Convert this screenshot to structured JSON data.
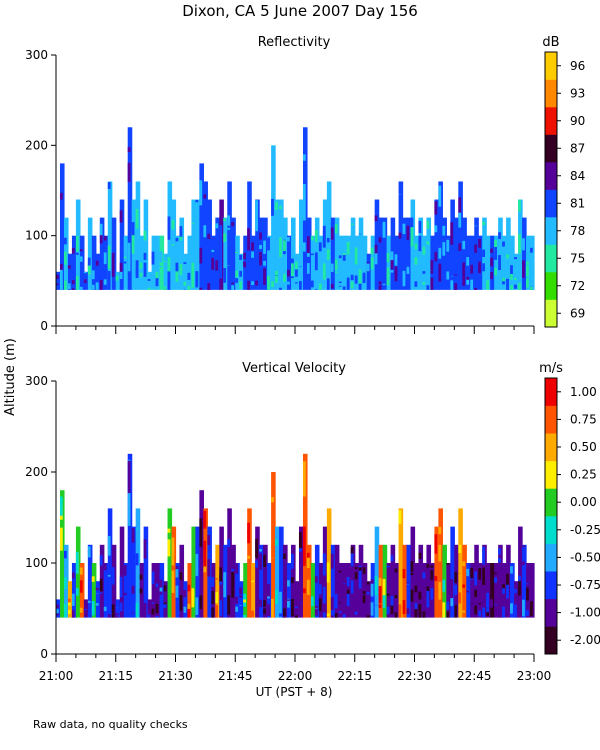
{
  "figure": {
    "title": "Dixon, CA  5 June 2007  Day 156",
    "shared_ylabel": "Altitude (m)",
    "xlabel": "UT  (PST + 8)",
    "footnote": "Raw data, no quality checks"
  },
  "chart_data": [
    {
      "type": "heatmap",
      "title": "Reflectivity",
      "x_range": [
        "21:00",
        "23:00"
      ],
      "x_ticks": [
        "21:00",
        "21:15",
        "21:30",
        "21:45",
        "22:00",
        "22:15",
        "22:30",
        "22:45",
        "23:00"
      ],
      "ylim": [
        0,
        300
      ],
      "y_ticks": [
        0,
        100,
        200,
        300
      ],
      "colorbar": {
        "unit": "dB",
        "tick_labels": [
          "69",
          "72",
          "75",
          "78",
          "81",
          "84",
          "87",
          "90",
          "93",
          "96"
        ],
        "colors": [
          "#ccff33",
          "#33dd00",
          "#22e8a0",
          "#22bbff",
          "#1144ff",
          "#550099",
          "#330022",
          "#ee1100",
          "#ff8800",
          "#ffcc00"
        ]
      },
      "data_floor_m": 40,
      "column_top_altitudes_m": [
        60,
        180,
        120,
        80,
        100,
        140,
        100,
        60,
        120,
        100,
        80,
        120,
        100,
        160,
        120,
        60,
        140,
        100,
        220,
        140,
        160,
        100,
        140,
        60,
        100,
        100,
        100,
        80,
        160,
        140,
        100,
        120,
        80,
        100,
        140,
        140,
        180,
        160,
        140,
        100,
        120,
        140,
        120,
        160,
        120,
        100,
        80,
        100,
        160,
        100,
        140,
        120,
        120,
        100,
        200,
        140,
        140,
        120,
        100,
        120,
        80,
        140,
        220,
        120,
        100,
        120,
        100,
        140,
        160,
        120,
        120,
        100,
        100,
        100,
        120,
        100,
        120,
        100,
        80,
        100,
        140,
        120,
        120,
        100,
        120,
        100,
        160,
        120,
        120,
        140,
        100,
        120,
        100,
        120,
        100,
        140,
        160,
        120,
        100,
        140,
        120,
        160,
        120,
        100,
        100,
        120,
        100,
        120,
        100,
        100,
        100,
        120,
        100,
        120,
        100,
        80,
        140,
        120,
        100,
        100
      ],
      "dominant_levels": [
        4,
        4,
        3,
        4,
        4,
        3,
        4,
        4,
        3,
        4,
        4,
        4,
        4,
        3,
        4,
        3,
        4,
        3,
        4,
        3,
        3,
        3,
        3,
        3,
        3,
        3,
        2,
        3,
        3,
        3,
        3,
        3,
        3,
        3,
        3,
        3,
        4,
        4,
        4,
        4,
        4,
        5,
        3,
        4,
        4,
        3,
        3,
        4,
        4,
        4,
        4,
        4,
        4,
        3,
        3,
        3,
        3,
        3,
        4,
        3,
        3,
        3,
        4,
        4,
        3,
        3,
        3,
        3,
        3,
        4,
        3,
        3,
        3,
        3,
        3,
        3,
        3,
        3,
        4,
        3,
        4,
        4,
        4,
        3,
        4,
        4,
        4,
        4,
        4,
        3,
        3,
        3,
        3,
        3,
        4,
        4,
        4,
        4,
        4,
        4,
        4,
        4,
        4,
        4,
        4,
        4,
        4,
        3,
        3,
        4,
        3,
        3,
        3,
        3,
        3,
        3,
        3,
        4,
        3,
        3
      ]
    },
    {
      "type": "heatmap",
      "title": "Vertical Velocity",
      "x_range": [
        "21:00",
        "23:00"
      ],
      "x_ticks": [
        "21:00",
        "21:15",
        "21:30",
        "21:45",
        "22:00",
        "22:15",
        "22:30",
        "22:45",
        "23:00"
      ],
      "ylim": [
        0,
        300
      ],
      "y_ticks": [
        0,
        100,
        200,
        300
      ],
      "colorbar": {
        "unit": "m/s",
        "tick_labels": [
          "-2.00",
          "-1.00",
          "-0.75",
          "-0.50",
          "-0.25",
          "0.00",
          "0.25",
          "0.50",
          "0.75",
          "1.00"
        ],
        "colors": [
          "#330022",
          "#550099",
          "#1133ff",
          "#22aaff",
          "#00ddcc",
          "#22cc22",
          "#ffee00",
          "#ffaa00",
          "#ff5500",
          "#ee0000"
        ]
      },
      "data_floor_m": 40,
      "column_top_altitudes_m": [
        60,
        180,
        120,
        80,
        100,
        140,
        100,
        60,
        120,
        100,
        80,
        120,
        100,
        160,
        120,
        60,
        140,
        100,
        220,
        140,
        160,
        100,
        140,
        60,
        100,
        100,
        100,
        80,
        160,
        140,
        100,
        120,
        80,
        100,
        140,
        140,
        180,
        160,
        140,
        100,
        120,
        140,
        120,
        160,
        120,
        100,
        80,
        100,
        160,
        100,
        140,
        120,
        120,
        100,
        200,
        140,
        140,
        120,
        100,
        120,
        80,
        140,
        220,
        120,
        100,
        120,
        100,
        140,
        160,
        120,
        120,
        100,
        100,
        100,
        120,
        100,
        120,
        100,
        80,
        100,
        140,
        120,
        120,
        100,
        120,
        100,
        160,
        120,
        120,
        140,
        100,
        120,
        100,
        120,
        100,
        140,
        160,
        120,
        100,
        140,
        120,
        160,
        120,
        100,
        100,
        120,
        100,
        120,
        100,
        100,
        100,
        120,
        100,
        120,
        100,
        80,
        140,
        120,
        100,
        100
      ],
      "dominant_levels": [
        2,
        5,
        3,
        7,
        2,
        5,
        8,
        1,
        2,
        5,
        2,
        1,
        2,
        2,
        1,
        2,
        1,
        2,
        2,
        2,
        3,
        1,
        2,
        1,
        1,
        1,
        2,
        1,
        5,
        8,
        2,
        1,
        2,
        8,
        5,
        2,
        1,
        8,
        2,
        1,
        7,
        1,
        2,
        1,
        1,
        2,
        2,
        5,
        8,
        7,
        1,
        2,
        1,
        2,
        8,
        3,
        2,
        1,
        2,
        1,
        1,
        1,
        8,
        8,
        5,
        2,
        1,
        1,
        7,
        2,
        1,
        1,
        1,
        1,
        1,
        1,
        1,
        1,
        1,
        2,
        3,
        8,
        5,
        1,
        1,
        1,
        7,
        8,
        2,
        1,
        1,
        1,
        1,
        1,
        1,
        8,
        8,
        5,
        1,
        2,
        1,
        7,
        8,
        2,
        1,
        1,
        1,
        1,
        1,
        0,
        1,
        1,
        1,
        1,
        2,
        1,
        1,
        2,
        1,
        1
      ]
    }
  ]
}
